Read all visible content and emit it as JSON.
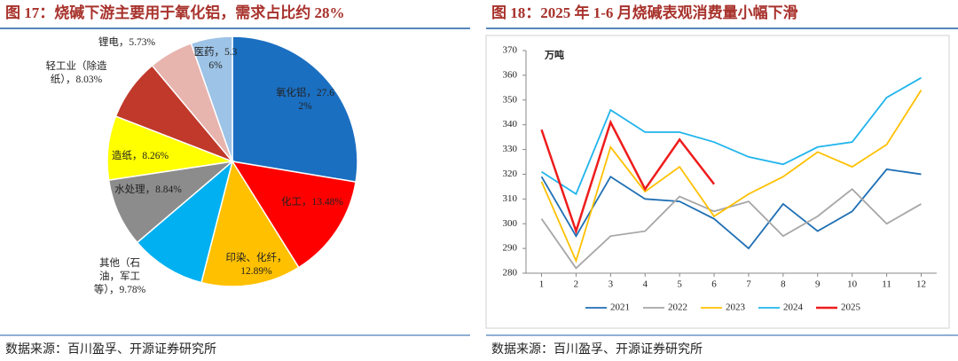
{
  "chart_data": [
    {
      "type": "pie",
      "title": "图 17：烧碱下游主要用于氧化铝，需求占比约 28%",
      "source": "数据来源：百川盈孚、开源证券研究所",
      "labels": [
        "氧化铝，27.62%",
        "化工，13.48%",
        "印染、化纤，12.89%",
        "其他（石油，军工等），9.78%",
        "水处理，8.84%",
        "造纸，8.26%",
        "轻工业（除造纸），8.03%",
        "锂电，5.73%",
        "医药，5.36%"
      ],
      "values": [
        27.62,
        13.48,
        12.89,
        9.78,
        8.84,
        8.26,
        8.03,
        5.73,
        5.36
      ],
      "colors": [
        "#1b6fc1",
        "#ff0000",
        "#ffc000",
        "#00b0f0",
        "#8c8c8c",
        "#ffff00",
        "#c0392b",
        "#e8b4ae",
        "#9dc3e6"
      ]
    },
    {
      "type": "line",
      "title": "图 18：2025 年 1-6 月烧碱表观消费量小幅下滑",
      "source": "数据来源：百川盈孚、开源证券研究所",
      "y_unit": "万吨",
      "x": [
        1,
        2,
        3,
        4,
        5,
        6,
        7,
        8,
        9,
        10,
        11,
        12
      ],
      "xlim": [
        0.55,
        12.45
      ],
      "xticks": [
        1,
        2,
        3,
        4,
        5,
        6,
        7,
        8,
        9,
        10,
        11,
        12
      ],
      "ylim": [
        280,
        370
      ],
      "yticks": [
        280,
        290,
        300,
        310,
        320,
        330,
        340,
        350,
        360,
        370
      ],
      "series": [
        {
          "name": "2021",
          "color": "#1f6fb4",
          "values": [
            319,
            295,
            319,
            310,
            309,
            302,
            290,
            308,
            297,
            305,
            322,
            320
          ]
        },
        {
          "name": "2022",
          "color": "#a6a6a6",
          "values": [
            302,
            282,
            295,
            297,
            311,
            305,
            309,
            295,
            303,
            314,
            300,
            308
          ]
        },
        {
          "name": "2023",
          "color": "#ffc000",
          "values": [
            317,
            285,
            331,
            313,
            323,
            303,
            312,
            319,
            329,
            323,
            332,
            354
          ]
        },
        {
          "name": "2024",
          "color": "#21b4ec",
          "values": [
            321,
            312,
            346,
            337,
            337,
            333,
            327,
            324,
            331,
            333,
            351,
            359
          ]
        },
        {
          "name": "2025",
          "color": "#ee1c1c",
          "values": [
            338,
            297,
            341,
            314,
            334,
            316,
            null,
            null,
            null,
            null,
            null,
            null
          ]
        }
      ]
    }
  ]
}
